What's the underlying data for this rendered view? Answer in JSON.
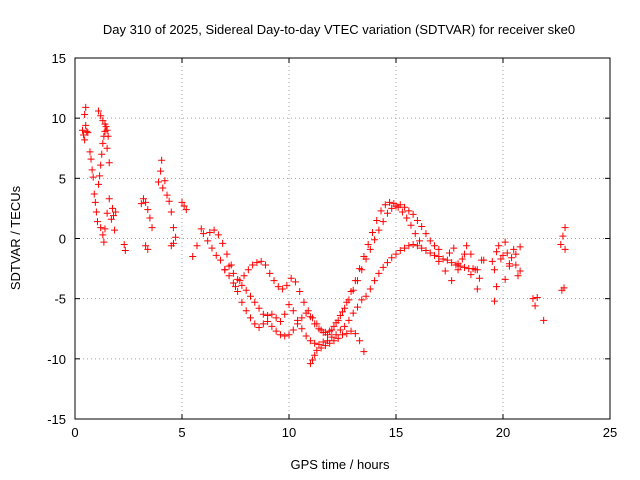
{
  "chart_data": {
    "type": "scatter",
    "title": "Day 310 of 2025, Sidereal Day-to-day VTEC variation (SDTVAR) for receiver ske0",
    "xlabel": "GPS time / hours",
    "ylabel": "SDTVAR / TECUs",
    "xlim": [
      0,
      25
    ],
    "ylim": [
      -15,
      15
    ],
    "xticks": [
      0,
      5,
      10,
      15,
      20,
      25
    ],
    "yticks": [
      -15,
      -10,
      -5,
      0,
      5,
      10,
      15
    ],
    "grid": true,
    "marker": "+",
    "color": "#ff0000",
    "series": [
      {
        "name": "SDTVAR",
        "x": [
          0.35,
          0.4,
          0.45,
          0.5,
          0.55,
          0.5,
          0.45,
          0.6,
          0.7,
          0.75,
          0.8,
          0.85,
          0.9,
          0.95,
          1.0,
          1.05,
          1.1,
          1.15,
          1.2,
          1.25,
          1.3,
          1.35,
          1.4,
          1.45,
          1.5,
          1.55,
          1.1,
          1.2,
          1.3,
          1.4,
          1.5,
          1.6,
          1.2,
          1.3,
          1.35,
          1.4,
          1.5,
          1.6,
          1.7,
          1.75,
          1.8,
          1.85,
          1.9,
          2.3,
          2.35,
          3.1,
          3.2,
          3.3,
          3.4,
          3.5,
          3.6,
          3.3,
          3.4,
          3.9,
          4.0,
          4.05,
          4.1,
          4.2,
          4.3,
          4.4,
          4.5,
          4.6,
          4.7,
          4.5,
          4.6,
          5.0,
          5.1,
          5.2,
          5.5,
          5.7,
          5.9,
          6.0,
          6.2,
          6.4,
          6.6,
          6.8,
          7.0,
          7.2,
          7.4,
          7.6,
          7.8,
          8.0,
          8.2,
          8.4,
          8.6,
          8.8,
          9.0,
          9.2,
          9.4,
          9.6,
          9.8,
          10.0,
          10.2,
          10.4,
          10.6,
          10.8,
          11.0,
          11.2,
          11.4,
          11.6,
          11.8,
          12.0,
          12.2,
          12.4,
          12.6,
          12.8,
          13.0,
          13.2,
          13.4,
          13.6,
          13.8,
          14.0,
          14.2,
          14.4,
          14.6,
          14.8,
          15.0,
          15.2,
          15.4,
          15.6,
          15.8,
          16.0,
          16.2,
          16.4,
          16.6,
          16.8,
          17.0,
          17.2,
          17.4,
          17.6,
          17.8,
          18.0,
          18.2,
          18.4,
          18.6,
          18.8,
          19.0,
          7.0,
          7.2,
          7.4,
          7.6,
          7.8,
          8.0,
          8.2,
          8.4,
          8.6,
          8.8,
          9.0,
          9.2,
          9.4,
          9.6,
          9.8,
          10.0,
          10.2,
          10.4,
          10.6,
          10.8,
          11.0,
          11.2,
          11.4,
          11.6,
          11.8,
          12.0,
          12.2,
          12.4,
          12.6,
          12.8,
          13.0,
          13.2,
          13.4,
          13.6,
          13.8,
          14.0,
          14.2,
          14.4,
          14.6,
          14.8,
          15.0,
          15.2,
          15.4,
          15.6,
          15.8,
          16.0,
          16.2,
          16.4,
          16.6,
          16.8,
          17.0,
          7.5,
          7.7,
          7.9,
          8.1,
          8.3,
          8.5,
          8.7,
          8.9,
          9.1,
          9.3,
          9.5,
          9.7,
          9.9,
          10.1,
          10.3,
          10.5,
          10.7,
          10.9,
          11.1,
          11.3,
          11.5,
          11.7,
          11.9,
          12.1,
          12.3,
          12.5,
          12.7,
          12.9,
          13.1,
          13.3,
          13.5,
          13.7,
          13.9,
          14.1,
          14.3,
          14.5,
          14.7,
          14.9,
          15.1,
          15.3,
          15.5,
          15.7,
          15.9,
          16.1,
          6.3,
          6.5,
          6.7,
          6.9,
          7.1,
          7.3,
          11.0,
          11.1,
          11.2,
          11.3,
          11.5,
          11.7,
          11.9,
          12.1,
          12.3,
          12.5,
          12.7,
          12.9,
          13.1,
          13.3,
          13.5,
          17.5,
          17.7,
          17.9,
          18.1,
          18.3,
          18.5,
          18.7,
          18.9,
          19.1,
          17.0,
          17.3,
          17.6,
          17.9,
          18.2,
          18.5,
          18.8,
          19.5,
          19.6,
          19.7,
          19.8,
          19.9,
          20.0,
          20.1,
          20.2,
          20.3,
          20.4,
          20.5,
          20.6,
          20.7,
          20.8,
          19.6,
          19.7,
          20.1,
          20.3,
          20.6,
          20.8,
          21.4,
          21.5,
          21.6,
          21.9,
          22.7,
          22.8,
          22.9,
          22.75,
          22.85,
          22.9
        ],
        "y": [
          9.0,
          8.6,
          8.2,
          9.4,
          8.9,
          10.9,
          10.3,
          8.8,
          7.2,
          6.6,
          5.7,
          5.1,
          3.7,
          3.0,
          2.2,
          1.4,
          4.5,
          5.2,
          6.1,
          7.0,
          7.9,
          8.5,
          8.9,
          9.3,
          9.0,
          8.5,
          10.6,
          10.2,
          9.8,
          9.5,
          7.5,
          6.3,
          0.9,
          0.3,
          -0.3,
          0.8,
          2.1,
          3.3,
          1.6,
          2.5,
          1.9,
          0.7,
          2.2,
          -0.5,
          -1.0,
          2.9,
          3.3,
          3.0,
          2.4,
          1.7,
          0.9,
          -0.6,
          -0.9,
          4.7,
          5.6,
          6.5,
          4.2,
          4.8,
          3.6,
          3.1,
          2.2,
          0.9,
          0.1,
          -0.6,
          -0.4,
          3.0,
          2.7,
          2.4,
          -1.5,
          -0.6,
          0.8,
          0.4,
          -0.2,
          -0.8,
          -1.4,
          -1.8,
          -2.6,
          -3.1,
          -3.7,
          -4.4,
          -5.3,
          -6.0,
          -6.6,
          -7.1,
          -7.4,
          -7.1,
          -6.4,
          -6.3,
          -6.6,
          -6.9,
          -6.3,
          -5.5,
          -6.0,
          -6.8,
          -7.5,
          -8.1,
          -8.5,
          -8.7,
          -8.8,
          -8.6,
          -8.5,
          -8.2,
          -8.0,
          -7.6,
          -7.3,
          -6.8,
          -6.2,
          -5.7,
          -5.1,
          -4.8,
          -4.2,
          -3.5,
          -2.9,
          -2.4,
          -2.0,
          -1.6,
          -1.3,
          -1.0,
          -0.8,
          -0.6,
          -0.5,
          -0.6,
          -0.8,
          -1.0,
          -1.2,
          -1.4,
          -1.5,
          -1.7,
          -1.8,
          -2.0,
          -2.2,
          -2.3,
          -2.4,
          -2.5,
          -2.5,
          -2.6,
          -1.8,
          -2.6,
          -2.3,
          -2.9,
          -3.4,
          -3.9,
          -4.3,
          -4.8,
          -5.3,
          -5.8,
          -6.3,
          -6.9,
          -7.3,
          -7.7,
          -8.0,
          -8.1,
          -8.0,
          -7.6,
          -7.1,
          -6.6,
          -6.2,
          -6.5,
          -7.1,
          -7.5,
          -7.8,
          -8.0,
          -7.6,
          -7.0,
          -6.4,
          -5.8,
          -5.1,
          -4.3,
          -3.5,
          -2.6,
          -1.7,
          -0.9,
          -0.1,
          0.7,
          1.4,
          2.1,
          2.5,
          2.7,
          2.8,
          2.6,
          2.3,
          2.0,
          1.5,
          1.0,
          0.4,
          -0.2,
          -0.6,
          -0.9,
          -4.0,
          -3.5,
          -3.1,
          -2.6,
          -2.2,
          -2.0,
          -1.9,
          -2.2,
          -2.9,
          -3.5,
          -4.0,
          -4.2,
          -3.9,
          -3.3,
          -3.6,
          -4.4,
          -5.3,
          -6.0,
          -6.6,
          -7.1,
          -7.6,
          -7.8,
          -7.7,
          -7.3,
          -6.8,
          -6.1,
          -5.3,
          -4.4,
          -3.5,
          -2.5,
          -1.5,
          -0.5,
          0.5,
          1.5,
          2.3,
          2.8,
          3.0,
          2.9,
          2.6,
          2.2,
          1.7,
          1.1,
          0.4,
          -0.2,
          0.5,
          0.7,
          0.3,
          -0.4,
          -1.3,
          -2.2,
          -10.4,
          -10.1,
          -9.7,
          -9.3,
          -9.1,
          -8.9,
          -8.7,
          -8.5,
          -8.3,
          -8.0,
          -7.9,
          -7.7,
          -7.9,
          -8.5,
          -9.4,
          -1.2,
          -0.8,
          -2.1,
          -1.7,
          -0.6,
          -1.3,
          -2.6,
          -3.3,
          -1.8,
          -1.9,
          -2.7,
          -3.5,
          -2.6,
          -1.3,
          -3.0,
          -4.2,
          -1.9,
          -2.6,
          -1.1,
          -0.6,
          -1.7,
          -1.4,
          -0.3,
          -1.2,
          -2.3,
          -1.6,
          -0.9,
          -2.2,
          -3.1,
          -0.7,
          -5.2,
          -4.0,
          -3.4,
          -2.1,
          -1.3,
          -2.7,
          -5.0,
          -5.6,
          -4.9,
          -6.8,
          -0.5,
          0.2,
          -0.9,
          -4.3,
          -4.1,
          0.9
        ]
      }
    ]
  }
}
